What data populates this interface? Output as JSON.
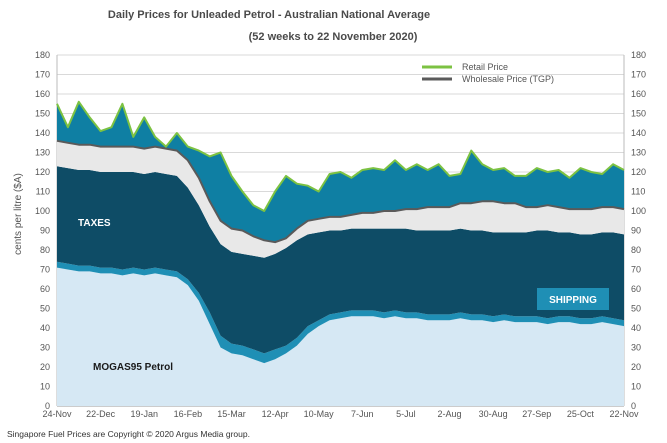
{
  "chart_data": {
    "type": "area",
    "title": "Daily Prices for Unleaded Petrol - Australian National Average",
    "subtitle": "(52 weeks to 22 November 2020)",
    "xlabel": "",
    "ylabel": "cents per litre ($A)",
    "ylim": [
      0,
      180
    ],
    "yticks": [
      0,
      10,
      20,
      30,
      40,
      50,
      60,
      70,
      80,
      90,
      100,
      110,
      120,
      130,
      140,
      150,
      160,
      170,
      180
    ],
    "xticks": [
      "24-Nov",
      "22-Dec",
      "19-Jan",
      "16-Feb",
      "15-Mar",
      "12-Apr",
      "10-May",
      "7-Jun",
      "5-Jul",
      "2-Aug",
      "30-Aug",
      "27-Sep",
      "25-Oct",
      "22-Nov"
    ],
    "grid": true,
    "legend_position": "top-right",
    "x_weeks": [
      0,
      1,
      2,
      3,
      4,
      5,
      6,
      7,
      8,
      9,
      10,
      11,
      12,
      13,
      14,
      15,
      16,
      17,
      18,
      19,
      20,
      21,
      22,
      23,
      24,
      25,
      26,
      27,
      28,
      29,
      30,
      31,
      32,
      33,
      34,
      35,
      36,
      37,
      38,
      39,
      40,
      41,
      42,
      43,
      44,
      45,
      46,
      47,
      48,
      49,
      50,
      51,
      52
    ],
    "series": [
      {
        "name": "MOGAS95 Petrol",
        "color": "#d6e8f4",
        "values": [
          71,
          70,
          69,
          69,
          68,
          68,
          67,
          68,
          67,
          68,
          67,
          66,
          62,
          54,
          42,
          30,
          27,
          26,
          24,
          22,
          24,
          27,
          31,
          37,
          41,
          44,
          45,
          46,
          46,
          46,
          45,
          46,
          45,
          45,
          44,
          44,
          44,
          45,
          44,
          44,
          43,
          44,
          43,
          43,
          43,
          42,
          43,
          43,
          42,
          42,
          43,
          42,
          41
        ]
      },
      {
        "name": "SHIPPING",
        "color": "#1f8fb5",
        "values": [
          74,
          73,
          72,
          72,
          71,
          71,
          70,
          71,
          70,
          71,
          70,
          69,
          65,
          58,
          48,
          36,
          32,
          31,
          29,
          27,
          29,
          31,
          35,
          41,
          44,
          47,
          48,
          49,
          49,
          49,
          48,
          49,
          48,
          48,
          47,
          47,
          47,
          48,
          47,
          47,
          46,
          47,
          46,
          46,
          46,
          45,
          46,
          46,
          45,
          45,
          46,
          45,
          44
        ]
      },
      {
        "name": "TAXES",
        "color": "#0e4c66",
        "values": [
          123,
          122,
          121,
          121,
          120,
          120,
          120,
          120,
          119,
          120,
          119,
          118,
          112,
          103,
          92,
          83,
          79,
          78,
          77,
          76,
          78,
          81,
          85,
          88,
          89,
          90,
          90,
          91,
          91,
          91,
          91,
          91,
          91,
          90,
          90,
          90,
          90,
          91,
          90,
          90,
          89,
          89,
          89,
          89,
          90,
          90,
          89,
          89,
          88,
          88,
          89,
          89,
          88
        ]
      },
      {
        "name": "Wholesale Price (TGP)",
        "color": "#5a5a5a",
        "values": [
          136,
          135,
          134,
          134,
          133,
          133,
          133,
          133,
          132,
          133,
          132,
          131,
          126,
          117,
          105,
          95,
          91,
          90,
          87,
          85,
          84,
          86,
          91,
          95,
          96,
          97,
          97,
          98,
          99,
          99,
          100,
          100,
          101,
          101,
          102,
          102,
          102,
          104,
          104,
          105,
          105,
          104,
          104,
          102,
          102,
          103,
          102,
          101,
          101,
          101,
          102,
          102,
          101
        ]
      },
      {
        "name": "Retail Price",
        "color": "#7cc242",
        "values": [
          155,
          143,
          156,
          148,
          141,
          143,
          155,
          138,
          148,
          138,
          133,
          140,
          133,
          131,
          128,
          130,
          118,
          110,
          103,
          100,
          110,
          118,
          114,
          113,
          110,
          119,
          120,
          117,
          121,
          122,
          121,
          126,
          121,
          124,
          121,
          124,
          118,
          119,
          131,
          124,
          121,
          122,
          118,
          118,
          122,
          120,
          121,
          117,
          122,
          120,
          119,
          124,
          121
        ]
      }
    ],
    "annotations": [
      "TAXES",
      "SHIPPING",
      "MOGAS95 Petrol"
    ],
    "colors": {
      "fuel": "#d6e8f4",
      "shipping": "#1f8fb5",
      "taxes": "#0e4c66",
      "wholesale_gap": "#e8e8e8",
      "retail_margin": "#0f7fa3",
      "wholesale_line": "#5a5a5a",
      "retail_line": "#7cc242",
      "shipping_box": "#1f8fb5"
    }
  },
  "legend": {
    "retail": "Retail Price",
    "wholesale": "Wholesale Price (TGP)"
  },
  "footnote": "Singapore Fuel Prices are Copyright © 2020 Argus Media group."
}
